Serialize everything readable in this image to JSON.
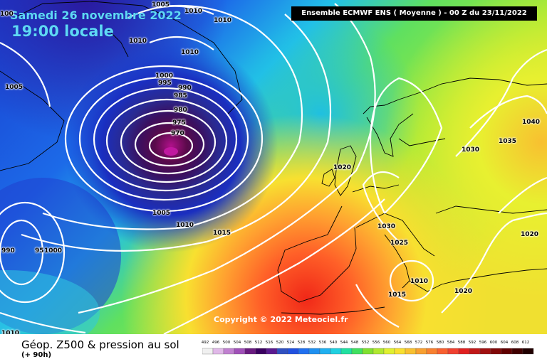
{
  "header": {
    "date": "Samedi 26 novembre 2022",
    "local_time": "19:00 locale",
    "run_info": "Ensemble ECMWF ENS  ( Moyenne )  -  00 Z du 23/11/2022"
  },
  "map": {
    "copyright": "Copyright © 2022 Meteociel.fr",
    "isobar_labels": [
      "1005",
      "1010",
      "1010",
      "1010",
      "1010",
      "1005",
      "1000",
      "995",
      "990",
      "985",
      "980",
      "975",
      "970",
      "1005",
      "1010",
      "1015",
      "990",
      "95",
      "1000",
      "1010",
      "1020",
      "1030",
      "1025",
      "1015",
      "1010",
      "1020",
      "1030",
      "1035",
      "1040",
      "1020",
      "100"
    ],
    "colors": {
      "low_center": "#5a0a4a",
      "ocean_blue": "#1e5ee8",
      "mid_green": "#7fe03a",
      "warm_red": "#ff5030",
      "isobar": "#ffffff",
      "coastline": "#000000"
    }
  },
  "footer": {
    "title": "Géop. Z500 & pression au sol",
    "forecast_hour": "(+ 90h)"
  },
  "legend": {
    "labels": [
      "492",
      "496",
      "500",
      "504",
      "508",
      "512",
      "516",
      "520",
      "524",
      "528",
      "532",
      "536",
      "540",
      "544",
      "548",
      "552",
      "556",
      "560",
      "564",
      "568",
      "572",
      "576",
      "580",
      "584",
      "588",
      "592",
      "596",
      "600",
      "604",
      "608",
      "612"
    ],
    "colors": [
      "#f0f0f0",
      "#e0b8e8",
      "#c080d0",
      "#a050b8",
      "#6a1a80",
      "#3a0060",
      "#5a1a90",
      "#3050c0",
      "#2050e0",
      "#2070f0",
      "#1e90f0",
      "#20b0f0",
      "#20d0e0",
      "#20e0a0",
      "#40e060",
      "#80e030",
      "#b0e830",
      "#e0f030",
      "#f8e030",
      "#f8c030",
      "#f8a030",
      "#f88030",
      "#f86030",
      "#f04030",
      "#e02020",
      "#c01818",
      "#a01010",
      "#800808",
      "#600000",
      "#400000",
      "#200000"
    ]
  }
}
